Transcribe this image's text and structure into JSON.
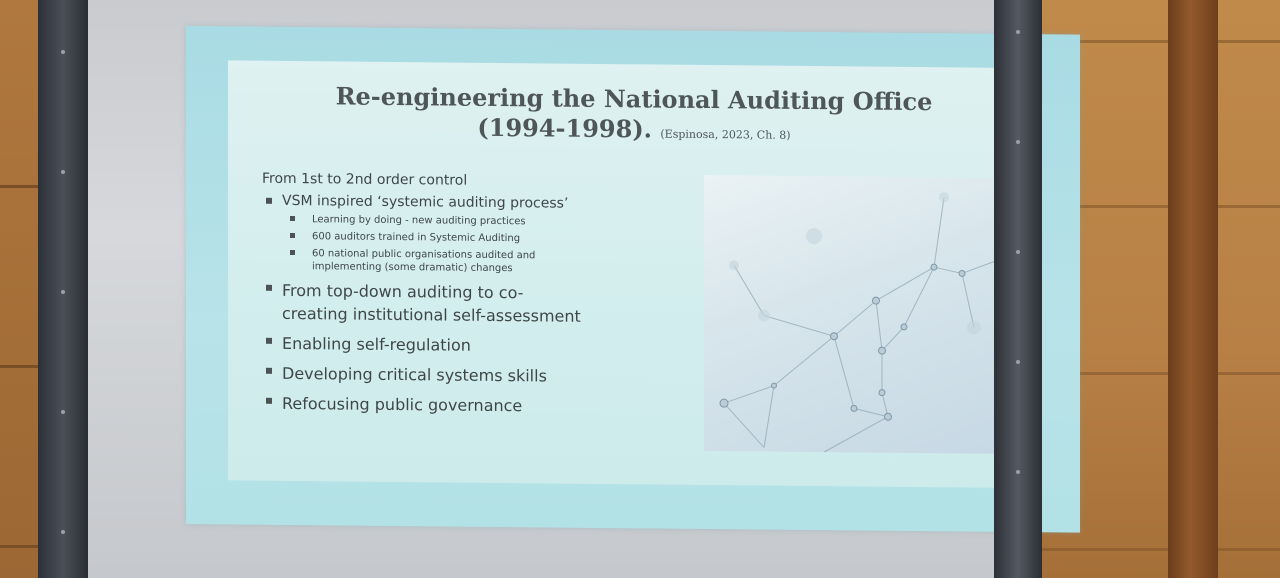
{
  "slide": {
    "title_line1": "Re-engineering the National Auditing Office",
    "title_line2": "(1994-1998).",
    "title_citation": "(Espinosa, 2023, Ch. 8)",
    "lead": "From 1st to 2nd order control",
    "bullets": [
      {
        "text": "VSM inspired ‘systemic auditing process’",
        "sub": [
          "Learning by doing - new auditing practices",
          "600 auditors trained in Systemic Auditing",
          "60 national public organisations audited and implementing (some dramatic) changes"
        ]
      },
      {
        "text": "From top-down auditing to co-creating institutional self-assessment"
      },
      {
        "text": "Enabling self-regulation"
      },
      {
        "text": "Developing critical systems skills"
      },
      {
        "text": "Refocusing public governance"
      }
    ],
    "image_icon": "network-nodes-icon"
  }
}
